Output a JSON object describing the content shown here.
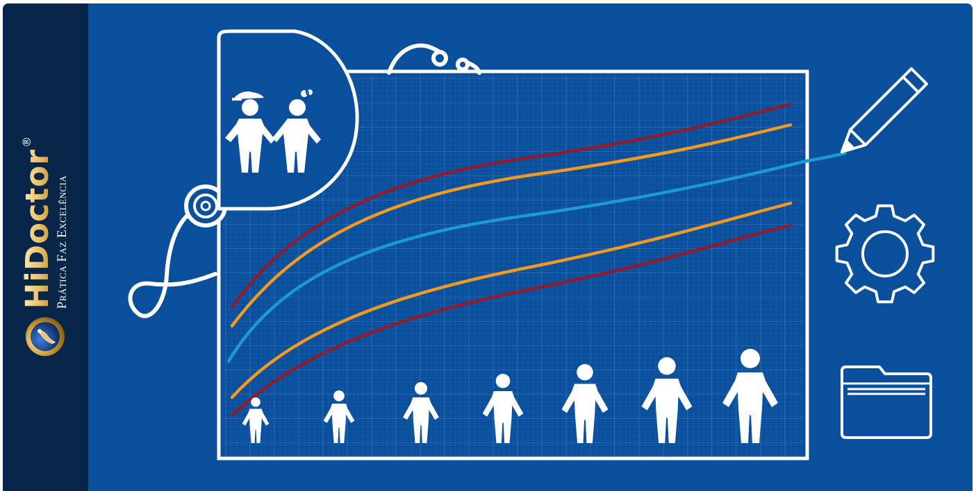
{
  "brand": {
    "name": "HiDoctor",
    "registered_mark": "®",
    "tagline": "Prática Faz Excelência"
  },
  "colors": {
    "background": "#0a4f9c",
    "sidebar": "#072649",
    "percentile_outer": "#8e1b2e",
    "percentile_inner": "#f39a1f",
    "median": "#1b9ad6",
    "brand_gold": "#e9c16a"
  },
  "icons": [
    "stethoscope-icon",
    "children-icon",
    "pencil-icon",
    "gear-icon",
    "folder-icon",
    "child-figure-icon"
  ]
}
